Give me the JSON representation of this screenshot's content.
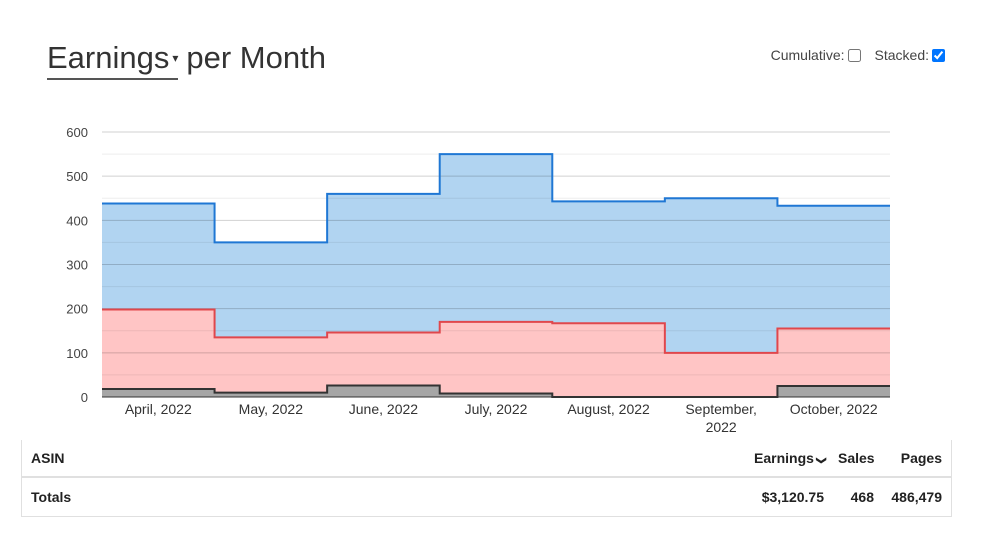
{
  "header": {
    "metric_label": "Earnings",
    "title_suffix": "per Month",
    "cumulative_label": "Cumulative:",
    "cumulative_checked": false,
    "stacked_label": "Stacked:",
    "stacked_checked": true
  },
  "chart_data": {
    "type": "area",
    "stacked": true,
    "step": true,
    "categories": [
      [
        "April, 2022"
      ],
      [
        "May, 2022"
      ],
      [
        "June, 2022"
      ],
      [
        "July, 2022"
      ],
      [
        "August, 2022"
      ],
      [
        "September,",
        "2022"
      ],
      [
        "October, 2022"
      ]
    ],
    "series": [
      {
        "values": [
          18,
          10,
          26,
          8,
          0,
          0,
          25
        ],
        "line_color": "#333333",
        "fill_color": "#a6a6a6"
      },
      {
        "values": [
          180,
          125,
          120,
          162,
          167,
          100,
          130
        ],
        "line_color": "#e0474c",
        "fill_color": "#ffc5c5"
      },
      {
        "values": [
          240,
          215,
          314,
          380,
          276,
          350,
          278
        ],
        "line_color": "#1f77d4",
        "fill_color": "#b1d4f1"
      }
    ],
    "ylim": [
      0,
      600
    ],
    "yticks": [
      0,
      100,
      200,
      300,
      400,
      500,
      600
    ],
    "grid": true
  },
  "table": {
    "columns": {
      "asin": "ASIN",
      "earnings": "Earnings",
      "sales": "Sales",
      "pages": "Pages"
    },
    "totals": {
      "label": "Totals",
      "earnings": "$3,120.75",
      "sales": "468",
      "pages": "486,479"
    }
  }
}
